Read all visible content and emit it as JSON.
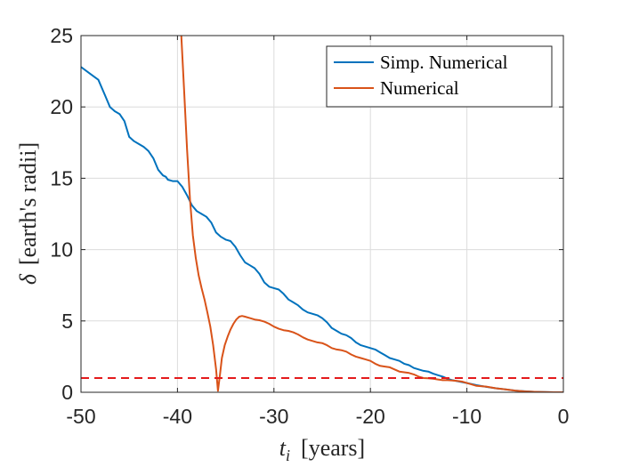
{
  "chart_data": {
    "type": "line",
    "title": "",
    "xlabel_var": "t",
    "xlabel_sub": "i",
    "xlabel_unit": "[years]",
    "ylabel_var": "δ",
    "ylabel_unit": "[earth's radii]",
    "xlim": [
      -50,
      0
    ],
    "ylim": [
      0,
      25
    ],
    "xticks": [
      -50,
      -40,
      -30,
      -20,
      -10,
      0
    ],
    "yticks": [
      0,
      5,
      10,
      15,
      20,
      25
    ],
    "grid": true,
    "legend_position": "top-right",
    "reference_line": {
      "y": 1,
      "color": "#e41a1c",
      "style": "dashed"
    },
    "series": [
      {
        "name": "Simp. Numerical",
        "color": "#0072BD",
        "x": [
          -50,
          -49,
          -48.2,
          -47.5,
          -47,
          -46.5,
          -46,
          -45.5,
          -45,
          -44.5,
          -44,
          -43.5,
          -43,
          -42.5,
          -42,
          -41.5,
          -41.2,
          -41,
          -40.5,
          -40,
          -39.5,
          -39,
          -38.5,
          -38,
          -37.5,
          -37,
          -36.5,
          -36,
          -35.5,
          -35,
          -34.5,
          -34,
          -33.5,
          -33,
          -32.5,
          -32,
          -31.5,
          -31,
          -30.5,
          -30,
          -29.5,
          -29,
          -28.5,
          -28,
          -27.5,
          -27,
          -26.5,
          -26,
          -25.5,
          -25,
          -24.5,
          -24,
          -23.5,
          -23,
          -22.5,
          -22,
          -21.5,
          -21,
          -20.5,
          -20,
          -19.5,
          -19,
          -18.5,
          -18,
          -17.5,
          -17,
          -16.5,
          -16,
          -15.5,
          -15,
          -14.5,
          -14,
          -13.5,
          -13,
          -12.5,
          -12,
          -11.5,
          -11,
          -10,
          -9,
          -8,
          -7,
          -6,
          -5,
          -4,
          -3,
          -2,
          -1,
          0
        ],
        "y": [
          22.8,
          22.3,
          21.9,
          20.8,
          20.0,
          19.7,
          19.5,
          19.0,
          17.9,
          17.6,
          17.4,
          17.2,
          16.9,
          16.4,
          15.6,
          15.2,
          15.1,
          14.9,
          14.8,
          14.8,
          14.4,
          13.8,
          13.1,
          12.7,
          12.5,
          12.3,
          11.9,
          11.2,
          10.9,
          10.7,
          10.6,
          10.2,
          9.6,
          9.1,
          8.9,
          8.7,
          8.3,
          7.7,
          7.4,
          7.3,
          7.2,
          6.9,
          6.5,
          6.3,
          6.1,
          5.8,
          5.6,
          5.5,
          5.4,
          5.2,
          4.9,
          4.5,
          4.3,
          4.1,
          4.0,
          3.8,
          3.5,
          3.3,
          3.2,
          3.1,
          3.0,
          2.8,
          2.6,
          2.4,
          2.3,
          2.2,
          2.0,
          1.9,
          1.7,
          1.6,
          1.5,
          1.45,
          1.3,
          1.2,
          1.1,
          0.95,
          0.85,
          0.78,
          0.65,
          0.5,
          0.38,
          0.28,
          0.2,
          0.12,
          0.07,
          0.03,
          0.01,
          0.0,
          0.0
        ]
      },
      {
        "name": "Numerical",
        "color": "#D95319",
        "x": [
          -39.6,
          -39.3,
          -39.0,
          -38.7,
          -38.4,
          -38.1,
          -37.8,
          -37.5,
          -37.2,
          -36.9,
          -36.6,
          -36.3,
          -36.0,
          -35.8,
          -35.6,
          -35.4,
          -35.1,
          -34.8,
          -34.5,
          -34.2,
          -33.9,
          -33.6,
          -33.3,
          -33.0,
          -32.5,
          -32.0,
          -31.5,
          -31.0,
          -30.5,
          -30.0,
          -29.5,
          -29.0,
          -28.5,
          -28.0,
          -27.5,
          -27.0,
          -26.5,
          -26.0,
          -25.5,
          -25.0,
          -24.5,
          -24.0,
          -23.5,
          -23.0,
          -22.5,
          -22.0,
          -21.5,
          -21.0,
          -20.5,
          -20.0,
          -19.5,
          -19.0,
          -18.5,
          -18.0,
          -17.5,
          -17.0,
          -16.5,
          -16.0,
          -15.5,
          -15.0,
          -14.5,
          -14.0,
          -13.5,
          -13.0,
          -12.5,
          -12.0,
          -11.5,
          -11.0,
          -10.5,
          -10.0,
          -9.5,
          -9.0,
          -8.0,
          -7.0,
          -6.0,
          -5.0,
          -4.0,
          -3.0,
          -2.0,
          -1.0,
          0.0
        ],
        "y": [
          25.0,
          21.0,
          17.0,
          13.5,
          11.0,
          9.4,
          8.2,
          7.3,
          6.5,
          5.6,
          4.6,
          3.3,
          1.6,
          0.1,
          1.2,
          2.4,
          3.3,
          3.9,
          4.4,
          4.8,
          5.1,
          5.3,
          5.35,
          5.3,
          5.2,
          5.1,
          5.05,
          4.95,
          4.8,
          4.6,
          4.45,
          4.35,
          4.3,
          4.2,
          4.05,
          3.85,
          3.7,
          3.6,
          3.5,
          3.45,
          3.3,
          3.1,
          3.0,
          2.95,
          2.85,
          2.65,
          2.5,
          2.4,
          2.3,
          2.2,
          2.0,
          1.85,
          1.8,
          1.75,
          1.6,
          1.45,
          1.4,
          1.35,
          1.25,
          1.1,
          1.0,
          0.98,
          0.95,
          0.9,
          0.85,
          0.85,
          0.82,
          0.8,
          0.75,
          0.65,
          0.55,
          0.45,
          0.4,
          0.28,
          0.2,
          0.12,
          0.06,
          0.03,
          0.01,
          0.0,
          0.0
        ]
      }
    ]
  }
}
